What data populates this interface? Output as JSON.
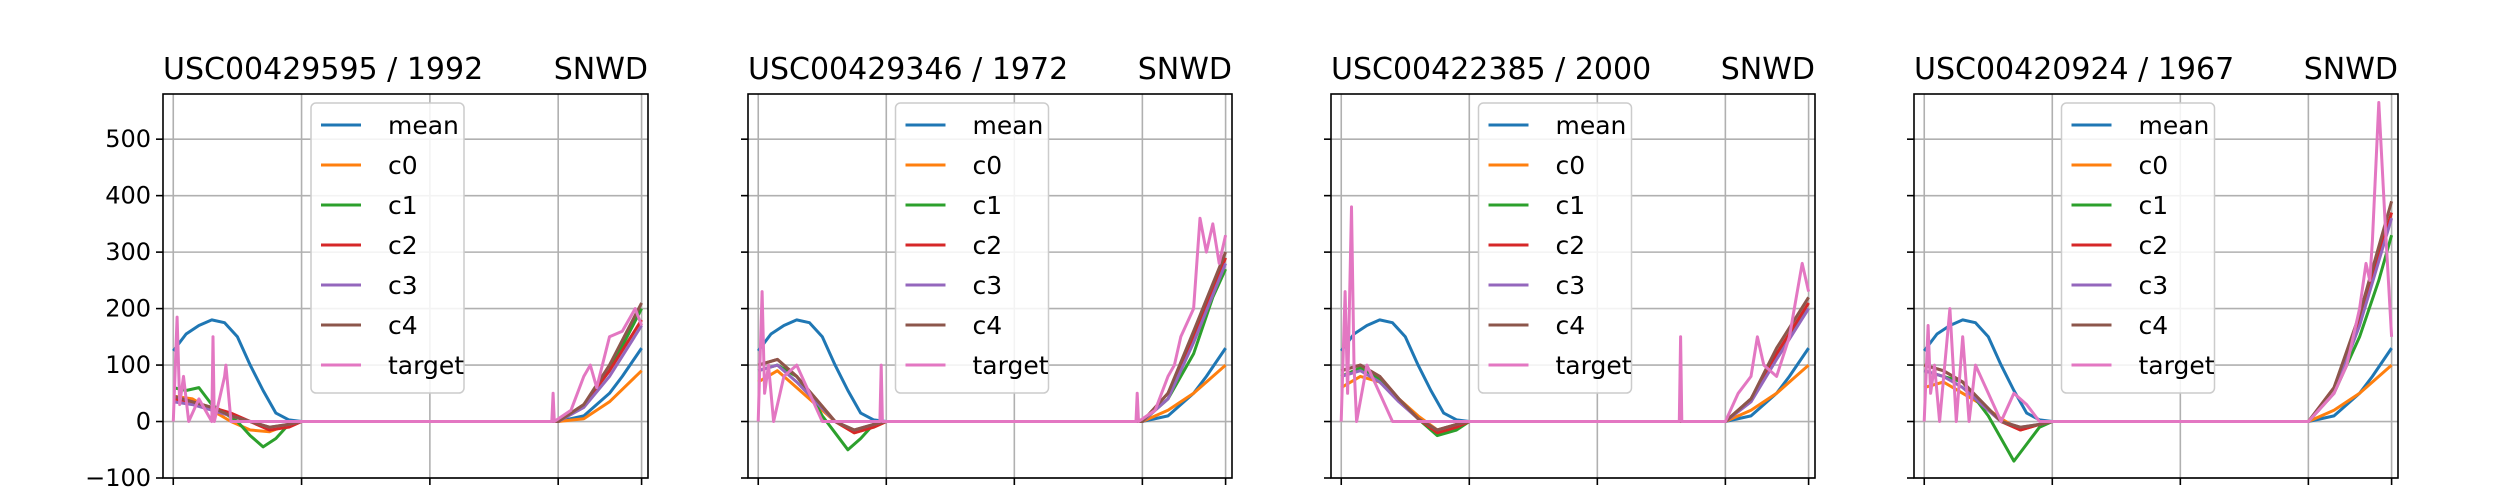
{
  "colors": {
    "mean": "#1f77b4",
    "c0": "#ff7f0e",
    "c1": "#2ca02c",
    "c2": "#d62728",
    "c3": "#9467bd",
    "c4": "#8c564b",
    "target": "#e377c2",
    "grid": "#b0b0b0"
  },
  "chart_data": [
    {
      "type": "line",
      "title": "USC00429595 / 1992",
      "title_right": "SNWD",
      "ylim": [
        -100,
        580
      ],
      "yticks": [
        -100,
        0,
        100,
        200,
        300,
        400,
        500
      ],
      "xlim": [
        -8,
        370
      ],
      "xticks": [
        0,
        100,
        200,
        300,
        365
      ],
      "grid": true,
      "legend_position": "upper center",
      "series": [
        {
          "name": "mean",
          "x": [
            0,
            10,
            20,
            30,
            40,
            50,
            60,
            70,
            80,
            90,
            100,
            300,
            320,
            340,
            350,
            365
          ],
          "y": [
            125,
            155,
            170,
            180,
            175,
            150,
            100,
            55,
            15,
            3,
            0,
            0,
            10,
            50,
            80,
            130
          ]
        },
        {
          "name": "c0",
          "x": [
            0,
            15,
            30,
            45,
            60,
            75,
            90,
            100,
            300,
            320,
            340,
            365
          ],
          "y": [
            45,
            40,
            20,
            0,
            -15,
            -18,
            -5,
            0,
            0,
            5,
            35,
            90
          ]
        },
        {
          "name": "c1",
          "x": [
            0,
            10,
            20,
            30,
            40,
            50,
            60,
            70,
            80,
            90,
            100,
            300,
            320,
            340,
            365
          ],
          "y": [
            60,
            55,
            60,
            30,
            15,
            0,
            -25,
            -45,
            -30,
            -5,
            0,
            0,
            30,
            90,
            200
          ]
        },
        {
          "name": "c2",
          "x": [
            0,
            15,
            30,
            45,
            60,
            75,
            90,
            100,
            300,
            320,
            340,
            365
          ],
          "y": [
            40,
            35,
            25,
            15,
            0,
            -15,
            -10,
            0,
            0,
            30,
            90,
            180
          ]
        },
        {
          "name": "c3",
          "x": [
            0,
            15,
            30,
            45,
            60,
            75,
            90,
            100,
            300,
            320,
            340,
            365
          ],
          "y": [
            35,
            30,
            20,
            10,
            0,
            -10,
            -5,
            0,
            0,
            25,
            80,
            170
          ]
        },
        {
          "name": "c4",
          "x": [
            0,
            15,
            30,
            45,
            60,
            75,
            90,
            100,
            300,
            320,
            340,
            365
          ],
          "y": [
            45,
            35,
            25,
            10,
            0,
            -10,
            -5,
            0,
            0,
            30,
            100,
            210
          ]
        },
        {
          "name": "target",
          "x": [
            0,
            3,
            5,
            8,
            12,
            20,
            30,
            31,
            32,
            40,
            41,
            45,
            60,
            70,
            80,
            90,
            100,
            295,
            296,
            297,
            310,
            320,
            325,
            330,
            340,
            350,
            360,
            365
          ],
          "y": [
            0,
            185,
            30,
            80,
            0,
            40,
            0,
            150,
            0,
            80,
            100,
            0,
            0,
            0,
            0,
            0,
            0,
            0,
            50,
            0,
            20,
            80,
            100,
            60,
            150,
            160,
            200,
            170
          ]
        }
      ]
    },
    {
      "type": "line",
      "title": "USC00429346 / 1972",
      "title_right": "SNWD",
      "ylim": [
        -100,
        580
      ],
      "yticks": [
        -100,
        0,
        100,
        200,
        300,
        400,
        500
      ],
      "xlim": [
        -8,
        370
      ],
      "xticks": [
        0,
        100,
        200,
        300,
        365
      ],
      "grid": true,
      "legend_position": "upper center",
      "series": [
        {
          "name": "mean",
          "x": [
            0,
            10,
            20,
            30,
            40,
            50,
            60,
            70,
            80,
            90,
            100,
            300,
            320,
            340,
            350,
            365
          ],
          "y": [
            125,
            155,
            170,
            180,
            175,
            150,
            100,
            55,
            15,
            3,
            0,
            0,
            10,
            50,
            80,
            130
          ]
        },
        {
          "name": "c0",
          "x": [
            0,
            15,
            30,
            45,
            60,
            75,
            90,
            100,
            300,
            320,
            340,
            365
          ],
          "y": [
            70,
            90,
            60,
            30,
            0,
            -20,
            -10,
            0,
            0,
            20,
            50,
            100
          ]
        },
        {
          "name": "c1",
          "x": [
            0,
            15,
            30,
            40,
            50,
            60,
            70,
            80,
            90,
            100,
            300,
            320,
            340,
            355,
            365
          ],
          "y": [
            90,
            100,
            80,
            50,
            10,
            -20,
            -50,
            -30,
            -5,
            0,
            0,
            40,
            120,
            220,
            270
          ]
        },
        {
          "name": "c2",
          "x": [
            0,
            15,
            30,
            45,
            60,
            75,
            90,
            100,
            300,
            320,
            340,
            365
          ],
          "y": [
            100,
            110,
            80,
            40,
            0,
            -20,
            -10,
            0,
            0,
            50,
            150,
            290
          ]
        },
        {
          "name": "c3",
          "x": [
            0,
            15,
            30,
            45,
            60,
            75,
            90,
            100,
            300,
            320,
            340,
            365
          ],
          "y": [
            90,
            100,
            70,
            35,
            0,
            -15,
            -5,
            0,
            0,
            40,
            140,
            280
          ]
        },
        {
          "name": "c4",
          "x": [
            0,
            15,
            30,
            45,
            60,
            75,
            90,
            100,
            300,
            320,
            340,
            365
          ],
          "y": [
            100,
            110,
            80,
            40,
            0,
            -15,
            -5,
            0,
            0,
            50,
            160,
            300
          ]
        },
        {
          "name": "target",
          "x": [
            0,
            3,
            5,
            8,
            12,
            20,
            30,
            40,
            50,
            60,
            70,
            95,
            96,
            97,
            100,
            295,
            296,
            297,
            310,
            320,
            325,
            330,
            340,
            345,
            350,
            355,
            360,
            365
          ],
          "y": [
            0,
            230,
            50,
            100,
            0,
            80,
            100,
            50,
            0,
            0,
            0,
            0,
            100,
            0,
            0,
            0,
            50,
            0,
            20,
            80,
            100,
            150,
            200,
            360,
            300,
            350,
            280,
            330
          ]
        }
      ]
    },
    {
      "type": "line",
      "title": "USC00422385 / 2000",
      "title_right": "SNWD",
      "ylim": [
        -100,
        580
      ],
      "yticks": [
        -100,
        0,
        100,
        200,
        300,
        400,
        500
      ],
      "xlim": [
        -8,
        370
      ],
      "xticks": [
        0,
        100,
        200,
        300,
        365
      ],
      "grid": true,
      "legend_position": "upper center",
      "series": [
        {
          "name": "mean",
          "x": [
            0,
            10,
            20,
            30,
            40,
            50,
            60,
            70,
            80,
            90,
            100,
            300,
            320,
            340,
            350,
            365
          ],
          "y": [
            125,
            155,
            170,
            180,
            175,
            150,
            100,
            55,
            15,
            3,
            0,
            0,
            10,
            50,
            80,
            130
          ]
        },
        {
          "name": "c0",
          "x": [
            0,
            15,
            30,
            45,
            60,
            75,
            90,
            100,
            300,
            320,
            340,
            365
          ],
          "y": [
            60,
            80,
            70,
            40,
            10,
            -15,
            -5,
            0,
            0,
            20,
            50,
            100
          ]
        },
        {
          "name": "c1",
          "x": [
            0,
            15,
            30,
            45,
            60,
            75,
            90,
            100,
            300,
            320,
            340,
            365
          ],
          "y": [
            80,
            95,
            75,
            40,
            5,
            -25,
            -15,
            0,
            0,
            40,
            120,
            200
          ]
        },
        {
          "name": "c2",
          "x": [
            0,
            15,
            30,
            45,
            60,
            75,
            90,
            100,
            300,
            320,
            340,
            365
          ],
          "y": [
            90,
            100,
            80,
            40,
            5,
            -20,
            -10,
            0,
            0,
            40,
            120,
            210
          ]
        },
        {
          "name": "c3",
          "x": [
            0,
            15,
            30,
            45,
            60,
            75,
            90,
            100,
            300,
            320,
            340,
            365
          ],
          "y": [
            80,
            90,
            70,
            35,
            5,
            -15,
            -5,
            0,
            0,
            35,
            110,
            200
          ]
        },
        {
          "name": "c4",
          "x": [
            0,
            15,
            30,
            45,
            60,
            75,
            90,
            100,
            300,
            320,
            340,
            365
          ],
          "y": [
            90,
            100,
            80,
            40,
            5,
            -15,
            -5,
            0,
            0,
            40,
            130,
            220
          ]
        },
        {
          "name": "target",
          "x": [
            0,
            3,
            5,
            8,
            10,
            12,
            20,
            30,
            40,
            50,
            60,
            80,
            100,
            264,
            265,
            266,
            300,
            310,
            320,
            325,
            330,
            340,
            350,
            360,
            365
          ],
          "y": [
            0,
            230,
            50,
            380,
            100,
            0,
            100,
            50,
            0,
            0,
            0,
            0,
            0,
            0,
            150,
            0,
            0,
            50,
            80,
            150,
            100,
            80,
            150,
            280,
            230
          ]
        }
      ]
    },
    {
      "type": "line",
      "title": "USC00420924 / 1967",
      "title_right": "SNWD",
      "ylim": [
        -100,
        580
      ],
      "yticks": [
        -100,
        0,
        100,
        200,
        300,
        400,
        500
      ],
      "xlim": [
        -8,
        370
      ],
      "xticks": [
        0,
        100,
        200,
        300,
        365
      ],
      "grid": true,
      "legend_position": "upper center",
      "series": [
        {
          "name": "mean",
          "x": [
            0,
            10,
            20,
            30,
            40,
            50,
            60,
            70,
            80,
            90,
            100,
            300,
            320,
            340,
            350,
            365
          ],
          "y": [
            125,
            155,
            170,
            180,
            175,
            150,
            100,
            55,
            15,
            3,
            0,
            0,
            10,
            50,
            80,
            130
          ]
        },
        {
          "name": "c0",
          "x": [
            0,
            15,
            30,
            45,
            60,
            75,
            90,
            100,
            300,
            320,
            340,
            365
          ],
          "y": [
            60,
            70,
            50,
            30,
            5,
            -15,
            -5,
            0,
            0,
            20,
            50,
            100
          ]
        },
        {
          "name": "c1",
          "x": [
            0,
            15,
            30,
            40,
            50,
            60,
            70,
            80,
            90,
            100,
            300,
            320,
            340,
            355,
            365
          ],
          "y": [
            90,
            80,
            70,
            40,
            10,
            -30,
            -70,
            -40,
            -10,
            0,
            0,
            50,
            150,
            250,
            330
          ]
        },
        {
          "name": "c2",
          "x": [
            0,
            15,
            30,
            45,
            60,
            75,
            90,
            100,
            300,
            320,
            340,
            365
          ],
          "y": [
            100,
            90,
            70,
            30,
            0,
            -15,
            -5,
            0,
            0,
            60,
            180,
            370
          ]
        },
        {
          "name": "c3",
          "x": [
            0,
            15,
            30,
            45,
            60,
            75,
            90,
            100,
            300,
            320,
            340,
            365
          ],
          "y": [
            90,
            80,
            60,
            30,
            0,
            -10,
            -5,
            0,
            0,
            50,
            170,
            360
          ]
        },
        {
          "name": "c4",
          "x": [
            0,
            15,
            30,
            45,
            60,
            75,
            90,
            100,
            300,
            320,
            340,
            365
          ],
          "y": [
            100,
            90,
            70,
            35,
            0,
            -10,
            -5,
            0,
            0,
            60,
            190,
            390
          ]
        },
        {
          "name": "target",
          "x": [
            0,
            3,
            5,
            8,
            12,
            20,
            25,
            30,
            35,
            40,
            50,
            60,
            70,
            80,
            90,
            100,
            300,
            320,
            330,
            340,
            345,
            348,
            350,
            355,
            360,
            365
          ],
          "y": [
            0,
            170,
            50,
            100,
            0,
            200,
            0,
            150,
            0,
            100,
            50,
            0,
            50,
            30,
            0,
            0,
            0,
            50,
            100,
            200,
            280,
            250,
            320,
            565,
            350,
            150
          ]
        }
      ]
    }
  ]
}
